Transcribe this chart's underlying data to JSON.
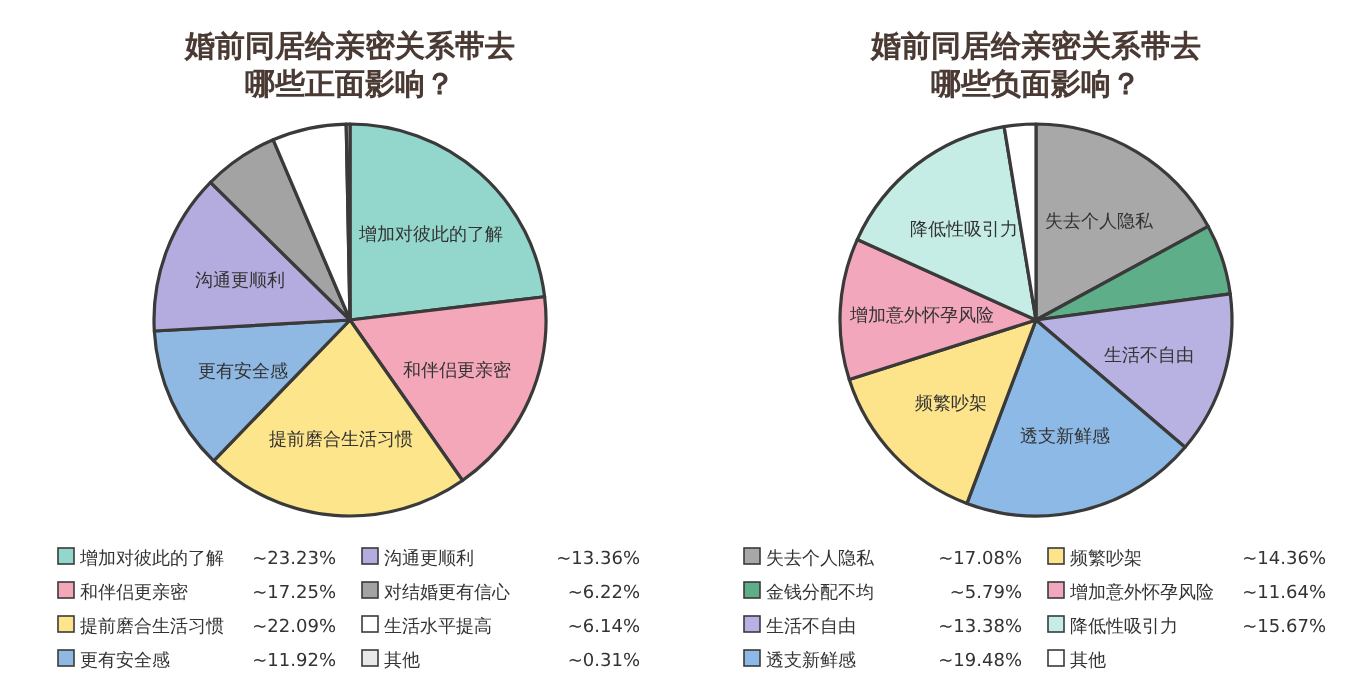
{
  "chart_data": [
    {
      "type": "pie",
      "title": "婚前同居给亲密关系带去哪些正面影响？",
      "categories": [
        "增加对彼此的了解",
        "和伴侣更亲密",
        "提前磨合生活习惯",
        "更有安全感",
        "沟通更顺利",
        "对结婚更有信心",
        "生活水平提高",
        "其他"
      ],
      "values": [
        23.23,
        17.25,
        22.09,
        11.92,
        13.36,
        6.22,
        6.14,
        0.31
      ],
      "value_labels": [
        "~23.23%",
        "~17.25%",
        "~22.09%",
        "~11.92%",
        "~13.36%",
        "~6.22%",
        "~6.14%",
        "~0.31%"
      ],
      "colors": [
        "#93d6cb",
        "#f4a7b9",
        "#fde58c",
        "#8fb9e2",
        "#b4abde",
        "#a3a3a3",
        "#ffffff",
        "#e8e8e8"
      ],
      "legend": "bottom"
    },
    {
      "type": "pie",
      "title": "婚前同居给亲密关系带去哪些负面影响？",
      "categories": [
        "失去个人隐私",
        "金钱分配不均",
        "生活不自由",
        "透支新鲜感",
        "频繁吵架",
        "增加意外怀孕风险",
        "降低性吸引力",
        "其他"
      ],
      "values": [
        17.08,
        5.79,
        13.38,
        19.48,
        14.36,
        11.64,
        15.67,
        2.6
      ],
      "value_labels": [
        "~17.08%",
        "~5.79%",
        "~13.38%",
        "~19.48%",
        "~14.36%",
        "~11.64%",
        "~15.67%",
        null
      ],
      "colors": [
        "#a8a8a8",
        "#5fae8a",
        "#b8b2e2",
        "#8cb9e6",
        "#fde48a",
        "#f3a7bc",
        "#c6ece6",
        "#ffffff"
      ],
      "legend": "bottom"
    }
  ]
}
